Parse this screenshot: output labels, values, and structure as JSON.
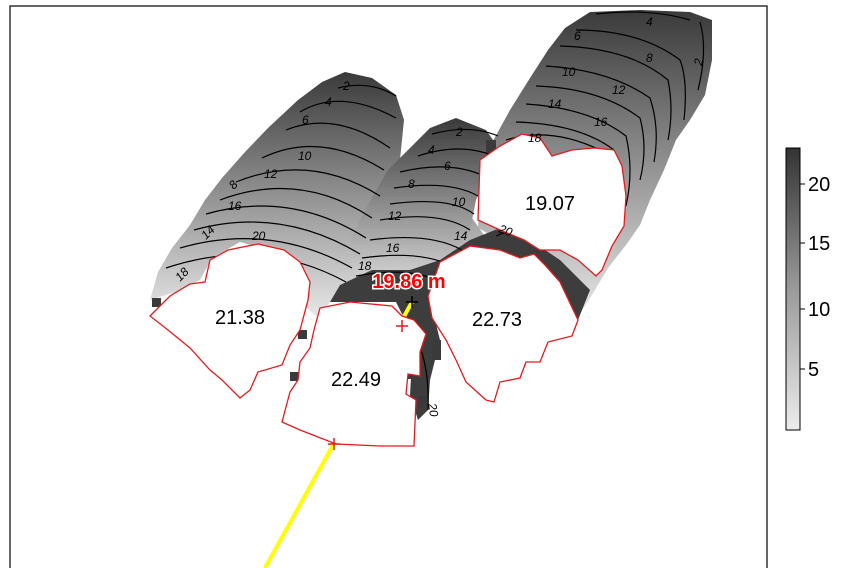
{
  "map": {
    "building_labels": [
      "21.38",
      "22.49",
      "22.73",
      "19.07"
    ],
    "measurement_label": "19.86 m",
    "contour_labels": {
      "left_group": [
        "2",
        "4",
        "6",
        "8",
        "10",
        "12",
        "14",
        "16",
        "18",
        "20"
      ],
      "middle_group": [
        "2",
        "4",
        "6",
        "8",
        "10",
        "12",
        "14",
        "16",
        "18",
        "20"
      ],
      "right_group": [
        "2",
        "4",
        "6",
        "8",
        "10",
        "12",
        "14",
        "16",
        "18",
        "20"
      ]
    }
  },
  "legend": {
    "ticks": [
      "5",
      "10",
      "15",
      "20"
    ],
    "range": [
      0,
      22.7
    ]
  },
  "colors": {
    "building_outline": "#e31a1c",
    "sight_line": "#ffff00",
    "measurement_text": "#ff0000",
    "contour": "#000000",
    "shade_low": "#e6e6e6",
    "shade_high": "#333333"
  }
}
